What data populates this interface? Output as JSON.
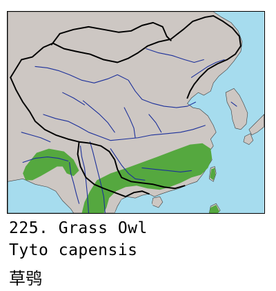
{
  "species": {
    "title": "225. Grass Owl",
    "scientific_name": "Tyto capensis",
    "chinese_name": "草鸮"
  },
  "map": {
    "sea_color": "#a6dcee",
    "land_color": "#cdc7c3",
    "range_color": "#55a83f",
    "river_color": "#1b2f9a",
    "border_color": "#000000",
    "range_regions": [
      "southern China",
      "Taiwan",
      "northeast India",
      "Myanmar"
    ]
  }
}
